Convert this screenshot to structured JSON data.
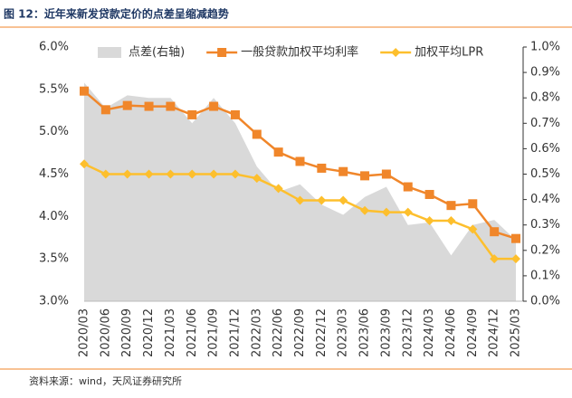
{
  "chart_data": {
    "type": "line",
    "title": "图 12：近年来新发贷款定价的点差呈缩减趋势",
    "source": "资料来源：wind，天风证券研究所",
    "categories": [
      "2020/03",
      "2020/06",
      "2020/09",
      "2020/12",
      "2021/03",
      "2021/06",
      "2021/09",
      "2021/12",
      "2022/03",
      "2022/06",
      "2022/09",
      "2022/12",
      "2023/03",
      "2023/06",
      "2023/09",
      "2023/12",
      "2024/03",
      "2024/06",
      "2024/09",
      "2024/12",
      "2025/03"
    ],
    "series": [
      {
        "name": "点差(右轴)",
        "type": "area",
        "axis": "y2",
        "color": "#d9d9d9",
        "values": [
          0.86,
          0.76,
          0.81,
          0.8,
          0.8,
          0.7,
          0.8,
          0.7,
          0.53,
          0.43,
          0.46,
          0.38,
          0.34,
          0.41,
          0.45,
          0.3,
          0.31,
          0.18,
          0.3,
          0.32,
          0.24
        ]
      },
      {
        "name": "一般贷款加权平均利率",
        "type": "line",
        "marker": "square",
        "color": "#f0862a",
        "values": [
          5.48,
          5.26,
          5.31,
          5.3,
          5.3,
          5.2,
          5.3,
          5.2,
          4.97,
          4.76,
          4.65,
          4.57,
          4.53,
          4.48,
          4.5,
          4.35,
          4.26,
          4.13,
          4.15,
          3.82,
          3.74
        ]
      },
      {
        "name": "加权平均LPR",
        "type": "line",
        "marker": "diamond",
        "color": "#fdbf2d",
        "values": [
          4.62,
          4.5,
          4.5,
          4.5,
          4.5,
          4.5,
          4.5,
          4.5,
          4.45,
          4.33,
          4.19,
          4.19,
          4.19,
          4.07,
          4.05,
          4.05,
          3.95,
          3.95,
          3.85,
          3.5,
          3.5
        ]
      }
    ],
    "ylim": [
      3.0,
      6.0
    ],
    "yticks": [
      {
        "value": 3.0,
        "label": "3.0%"
      },
      {
        "value": 3.5,
        "label": "3.5%"
      },
      {
        "value": 4.0,
        "label": "4.0%"
      },
      {
        "value": 4.5,
        "label": "4.5%"
      },
      {
        "value": 5.0,
        "label": "5.0%"
      },
      {
        "value": 5.5,
        "label": "5.5%"
      },
      {
        "value": 6.0,
        "label": "6.0%"
      }
    ],
    "y2lim": [
      0,
      1.0
    ],
    "y2ticks": [
      {
        "value": 0,
        "label": "0.0%"
      },
      {
        "value": 0.1,
        "label": "0.1%"
      },
      {
        "value": 0.2,
        "label": "0.2%"
      },
      {
        "value": 0.3,
        "label": "0.3%"
      },
      {
        "value": 0.4,
        "label": "0.4%"
      },
      {
        "value": 0.5,
        "label": "0.5%"
      },
      {
        "value": 0.6,
        "label": "0.6%"
      },
      {
        "value": 0.7,
        "label": "0.7%"
      },
      {
        "value": 0.8,
        "label": "0.8%"
      },
      {
        "value": 0.9,
        "label": "0.9%"
      },
      {
        "value": 1.0,
        "label": "1.0%"
      }
    ]
  }
}
